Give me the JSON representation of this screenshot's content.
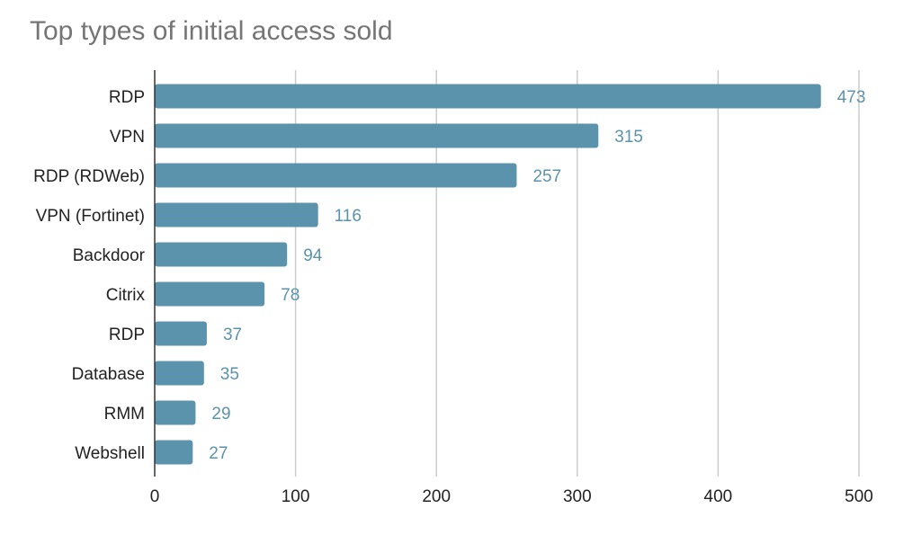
{
  "chart_data": {
    "type": "bar",
    "orientation": "horizontal",
    "title": "Top types of initial access sold",
    "xlabel": "",
    "ylabel": "",
    "categories": [
      "RDP",
      "VPN",
      "RDP (RDWeb)",
      "VPN (Fortinet)",
      "Backdoor",
      "Citrix",
      "RDP",
      "Database",
      "RMM",
      "Webshell"
    ],
    "values": [
      473,
      315,
      257,
      116,
      94,
      78,
      37,
      35,
      29,
      27
    ],
    "xlim": [
      0,
      500
    ],
    "xticks": [
      0,
      100,
      200,
      300,
      400,
      500
    ],
    "grid": "vertical",
    "legend": "none",
    "bar_color": "#5b93ad",
    "data_labels": true
  }
}
